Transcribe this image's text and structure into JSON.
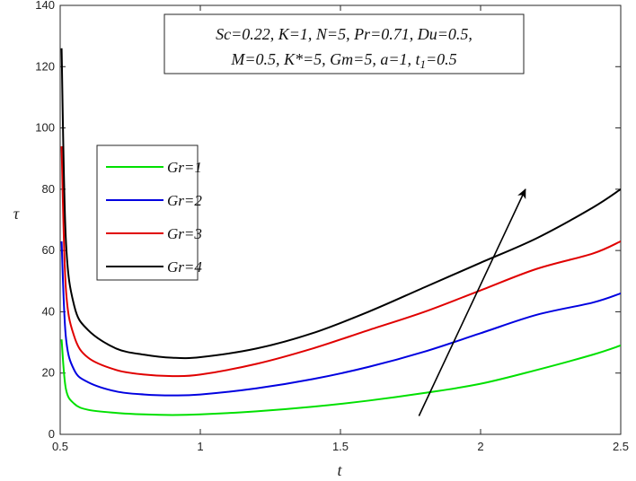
{
  "chart_data": {
    "type": "line",
    "xlabel": "t",
    "ylabel": "τ",
    "xlim": [
      0.5,
      2.5
    ],
    "ylim": [
      0,
      140
    ],
    "xticks": [
      0.5,
      1,
      1.5,
      2,
      2.5
    ],
    "yticks": [
      0,
      20,
      40,
      60,
      80,
      100,
      120,
      140
    ],
    "grid": false,
    "legend_position": "left",
    "annotation": {
      "line1": "Sc=0.22, K=1, N=5, Pr=0.71, Du=0.5,",
      "line2": "M=0.5, K*=5, Gm=5, a=1, t",
      "line2_sub": "1",
      "line2_end": "=0.5"
    },
    "arrow": {
      "from": [
        1.78,
        6
      ],
      "to": [
        2.16,
        80
      ]
    },
    "series": [
      {
        "name": "Gr=1",
        "color": "#00e000",
        "x": [
          0.505,
          0.52,
          0.55,
          0.6,
          0.7,
          0.8,
          0.9,
          1.0,
          1.2,
          1.4,
          1.6,
          1.8,
          2.0,
          2.2,
          2.4,
          2.5
        ],
        "y": [
          31,
          15,
          10,
          8,
          7,
          6.5,
          6.3,
          6.5,
          7.5,
          9,
          11,
          13.5,
          16.5,
          21,
          26,
          29
        ]
      },
      {
        "name": "Gr=2",
        "color": "#0000e0",
        "x": [
          0.505,
          0.52,
          0.55,
          0.6,
          0.7,
          0.8,
          0.9,
          1.0,
          1.2,
          1.4,
          1.6,
          1.8,
          2.0,
          2.2,
          2.4,
          2.5
        ],
        "y": [
          63,
          32,
          21,
          17,
          14,
          13,
          12.7,
          13,
          15,
          18,
          22,
          27,
          33,
          39,
          43,
          46
        ]
      },
      {
        "name": "Gr=3",
        "color": "#e00000",
        "x": [
          0.505,
          0.52,
          0.55,
          0.6,
          0.7,
          0.8,
          0.9,
          1.0,
          1.2,
          1.4,
          1.6,
          1.8,
          2.0,
          2.2,
          2.4,
          2.5
        ],
        "y": [
          94,
          48,
          32,
          25,
          21,
          19.5,
          19,
          19.5,
          23,
          28,
          34,
          40,
          47,
          54,
          59,
          63
        ]
      },
      {
        "name": "Gr=4",
        "color": "#000000",
        "x": [
          0.505,
          0.52,
          0.55,
          0.6,
          0.7,
          0.8,
          0.9,
          1.0,
          1.2,
          1.4,
          1.6,
          1.8,
          2.0,
          2.2,
          2.4,
          2.5
        ],
        "y": [
          126,
          64,
          42,
          34,
          28,
          26,
          25,
          25.2,
          28,
          33,
          40,
          48,
          56,
          64,
          74,
          80
        ]
      }
    ]
  }
}
